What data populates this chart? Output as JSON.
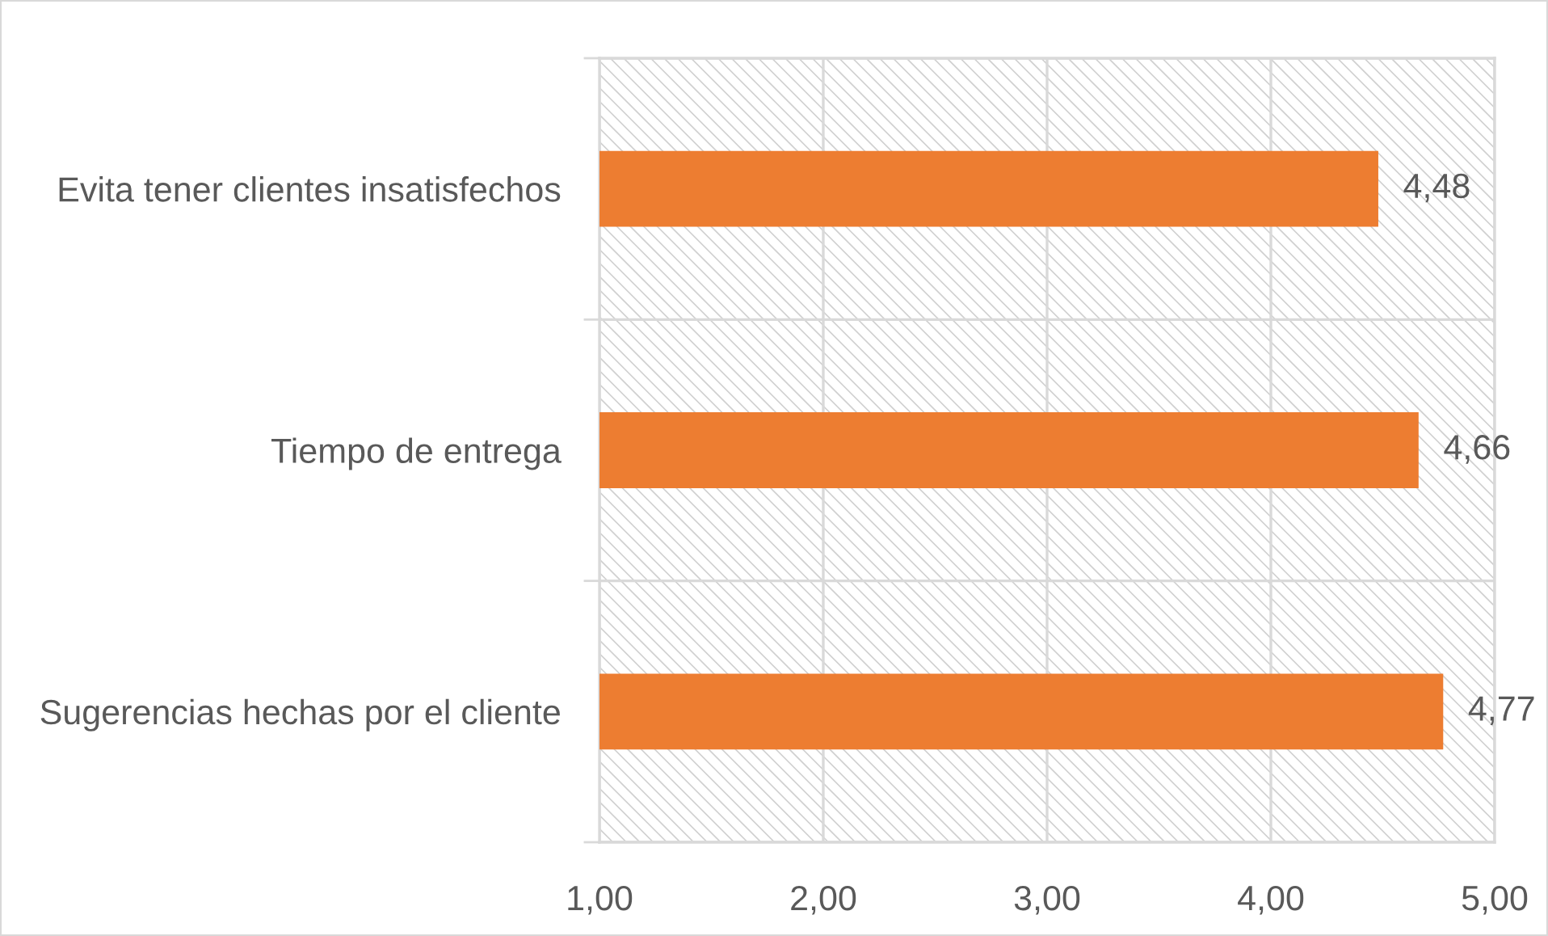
{
  "chart_data": {
    "type": "bar",
    "orientation": "horizontal",
    "categories": [
      "Evita tener clientes insatisfechos",
      "Tiempo de entrega",
      "Sugerencias hechas por el cliente"
    ],
    "values": [
      4.48,
      4.66,
      4.77
    ],
    "color": "#ed7d31",
    "value_labels": [
      "4,48",
      "4,66",
      "4,77"
    ],
    "xlim": [
      1,
      5
    ],
    "xticks": [
      {
        "value": 1,
        "label": "1,00"
      },
      {
        "value": 2,
        "label": "2,00"
      },
      {
        "value": 3,
        "label": "3,00"
      },
      {
        "value": 4,
        "label": "4,00"
      },
      {
        "value": 5,
        "label": "5,00"
      }
    ],
    "grid": true
  }
}
